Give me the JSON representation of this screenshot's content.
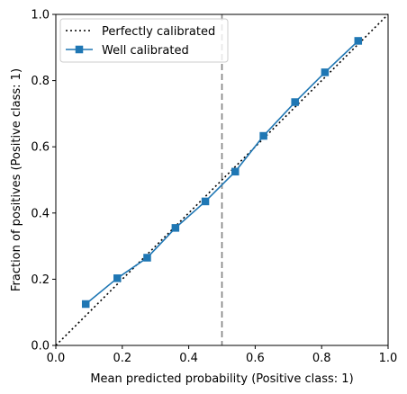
{
  "chart_data": {
    "type": "line",
    "title": "",
    "xlabel": "Mean predicted probability (Positive class: 1)",
    "ylabel": "Fraction of positives (Positive class: 1)",
    "xlim": [
      0.0,
      1.0
    ],
    "ylim": [
      0.0,
      1.0
    ],
    "xticks": [
      0.0,
      0.2,
      0.4,
      0.6,
      0.8,
      1.0
    ],
    "yticks": [
      0.0,
      0.2,
      0.4,
      0.6,
      0.8,
      1.0
    ],
    "xtick_labels": [
      "0.0",
      "0.2",
      "0.4",
      "0.6",
      "0.8",
      "1.0"
    ],
    "ytick_labels": [
      "0.0",
      "0.2",
      "0.4",
      "0.6",
      "0.8",
      "1.0"
    ],
    "grid": false,
    "legend_position": "top-left",
    "series": [
      {
        "name": "Perfectly calibrated",
        "style": "dotted",
        "color": "#000000",
        "x": [
          0.0,
          1.0
        ],
        "y": [
          0.0,
          1.0
        ]
      },
      {
        "name": "Well calibrated",
        "style": "solid",
        "marker": "square",
        "color": "#1f77b4",
        "x": [
          0.09,
          0.185,
          0.275,
          0.36,
          0.45,
          0.54,
          0.625,
          0.72,
          0.81,
          0.91
        ],
        "y": [
          0.125,
          0.203,
          0.265,
          0.355,
          0.435,
          0.525,
          0.633,
          0.735,
          0.825,
          0.92
        ]
      }
    ],
    "vertical_line": {
      "x": 0.5,
      "style": "dashed",
      "color": "#808080"
    }
  }
}
